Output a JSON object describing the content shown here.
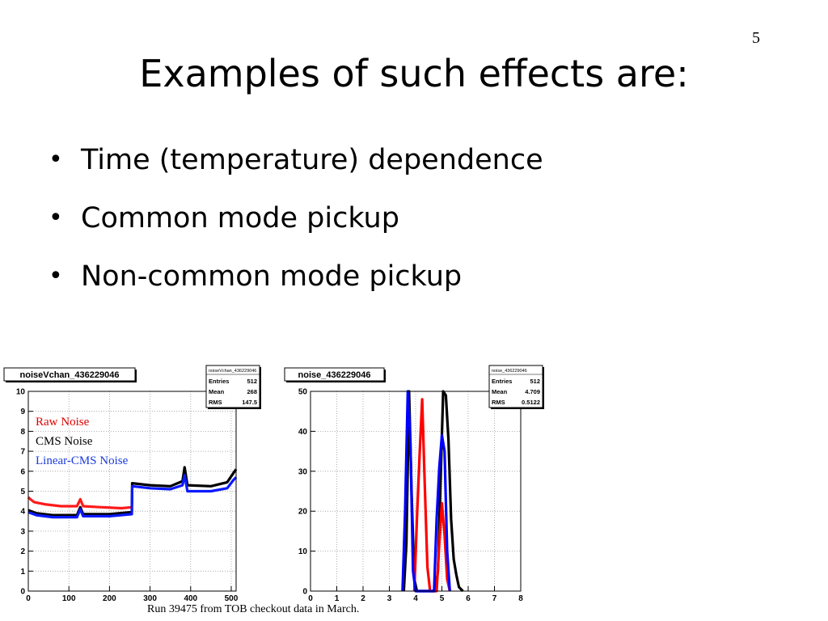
{
  "slide": {
    "number": "5",
    "title": "Examples of such effects are:",
    "bullets": [
      "Time (temperature) dependence",
      "Common mode pickup",
      "Non-common mode pickup"
    ],
    "caption": "Run 39475 from TOB checkout data in March."
  },
  "chart_data": [
    {
      "type": "line",
      "title": "noiseVchan_436229046",
      "stats": {
        "name": "noiseVchan_436229046",
        "rows": [
          {
            "label": "Entries",
            "value": "512"
          },
          {
            "label": "Mean",
            "value": "268"
          },
          {
            "label": "RMS",
            "value": "147.5"
          }
        ]
      },
      "xlim": [
        0,
        512
      ],
      "ylim": [
        0,
        10
      ],
      "xticks": [
        "0",
        "100",
        "200",
        "300",
        "400",
        "500"
      ],
      "yticks": [
        "0",
        "1",
        "2",
        "3",
        "4",
        "5",
        "6",
        "7",
        "8",
        "9",
        "10"
      ],
      "grid": true,
      "legend": {
        "placement": "top-left",
        "entries": [
          {
            "name": "Raw Noise",
            "color": "#e00000"
          },
          {
            "name": "CMS Noise",
            "color": "#000000"
          },
          {
            "name": "Linear-CMS Noise",
            "color": "#1a3adb"
          }
        ]
      },
      "series": [
        {
          "name": "Raw Noise",
          "color": "#ff1a1a",
          "points": [
            [
              0,
              4.7
            ],
            [
              5,
              4.6
            ],
            [
              15,
              4.45
            ],
            [
              40,
              4.35
            ],
            [
              80,
              4.25
            ],
            [
              120,
              4.25
            ],
            [
              128,
              4.6
            ],
            [
              135,
              4.25
            ],
            [
              180,
              4.2
            ],
            [
              230,
              4.15
            ],
            [
              255,
              4.2
            ]
          ]
        },
        {
          "name": "CMS Noise",
          "color": "#000000",
          "points": [
            [
              0,
              4.05
            ],
            [
              20,
              3.9
            ],
            [
              60,
              3.8
            ],
            [
              120,
              3.8
            ],
            [
              128,
              4.2
            ],
            [
              135,
              3.85
            ],
            [
              200,
              3.85
            ],
            [
              255,
              3.95
            ],
            [
              256,
              5.4
            ],
            [
              300,
              5.3
            ],
            [
              350,
              5.25
            ],
            [
              380,
              5.5
            ],
            [
              385,
              6.2
            ],
            [
              392,
              5.3
            ],
            [
              450,
              5.25
            ],
            [
              490,
              5.45
            ],
            [
              505,
              5.9
            ],
            [
              512,
              6.1
            ]
          ]
        },
        {
          "name": "Linear-CMS Noise",
          "color": "#0a1aff",
          "points": [
            [
              0,
              3.95
            ],
            [
              20,
              3.8
            ],
            [
              60,
              3.7
            ],
            [
              120,
              3.7
            ],
            [
              128,
              4.1
            ],
            [
              135,
              3.75
            ],
            [
              200,
              3.75
            ],
            [
              255,
              3.85
            ],
            [
              256,
              5.25
            ],
            [
              300,
              5.15
            ],
            [
              350,
              5.1
            ],
            [
              380,
              5.3
            ],
            [
              385,
              5.8
            ],
            [
              392,
              5.0
            ],
            [
              450,
              5.0
            ],
            [
              490,
              5.15
            ],
            [
              505,
              5.55
            ],
            [
              512,
              5.7
            ]
          ]
        }
      ]
    },
    {
      "type": "line",
      "title": "noise_436229046",
      "stats": {
        "name": "noise_436229046",
        "rows": [
          {
            "label": "Entries",
            "value": "512"
          },
          {
            "label": "Mean",
            "value": "4.709"
          },
          {
            "label": "RMS",
            "value": "0.5122"
          }
        ]
      },
      "xlim": [
        0,
        8
      ],
      "ylim": [
        0,
        50
      ],
      "xticks": [
        "0",
        "1",
        "2",
        "3",
        "4",
        "5",
        "6",
        "7",
        "8"
      ],
      "yticks": [
        "0",
        "10",
        "20",
        "30",
        "40",
        "50"
      ],
      "grid": true,
      "series": [
        {
          "name": "",
          "color": "#000000",
          "points": [
            [
              3.55,
              0
            ],
            [
              3.65,
              12
            ],
            [
              3.75,
              50
            ],
            [
              3.85,
              24
            ],
            [
              3.95,
              3
            ],
            [
              4.05,
              0
            ],
            [
              4.75,
              0
            ],
            [
              4.85,
              5
            ],
            [
              4.95,
              28
            ],
            [
              5.05,
              50
            ],
            [
              5.15,
              49
            ],
            [
              5.25,
              38
            ],
            [
              5.35,
              18
            ],
            [
              5.45,
              8
            ],
            [
              5.55,
              4
            ],
            [
              5.65,
              1
            ],
            [
              5.8,
              0
            ]
          ]
        },
        {
          "name": "",
          "color": "#ff0000",
          "points": [
            [
              3.95,
              0
            ],
            [
              4.05,
              18
            ],
            [
              4.15,
              34
            ],
            [
              4.25,
              48
            ],
            [
              4.35,
              26
            ],
            [
              4.45,
              6
            ],
            [
              4.55,
              0
            ],
            [
              4.8,
              0
            ],
            [
              4.9,
              12
            ],
            [
              5.0,
              22
            ],
            [
              5.1,
              14
            ],
            [
              5.2,
              3
            ],
            [
              5.3,
              0
            ]
          ]
        },
        {
          "name": "",
          "color": "#0000ff",
          "points": [
            [
              3.5,
              0
            ],
            [
              3.6,
              20
            ],
            [
              3.7,
              50
            ],
            [
              3.8,
              38
            ],
            [
              3.9,
              5
            ],
            [
              4.0,
              0
            ],
            [
              4.7,
              0
            ],
            [
              4.8,
              18
            ],
            [
              4.9,
              31
            ],
            [
              5.0,
              39
            ],
            [
              5.1,
              35
            ],
            [
              5.2,
              10
            ],
            [
              5.3,
              0
            ]
          ]
        }
      ]
    }
  ]
}
